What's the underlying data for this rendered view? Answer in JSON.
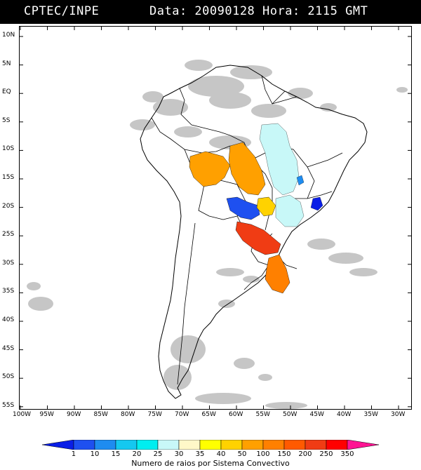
{
  "header": {
    "agency": "CPTEC/INPE",
    "datetime": "Data: 20090128 Hora: 2115 GMT"
  },
  "map": {
    "lat_labels": [
      "10N",
      "5N",
      "EQ",
      "5S",
      "10S",
      "15S",
      "20S",
      "25S",
      "30S",
      "35S",
      "40S",
      "45S",
      "50S",
      "55S"
    ],
    "lon_labels": [
      "100W",
      "95W",
      "90W",
      "85W",
      "80W",
      "75W",
      "70W",
      "65W",
      "60W",
      "55W",
      "50W",
      "45W",
      "40W",
      "35W",
      "30W"
    ],
    "colors": {
      "coast": "#000000",
      "clouds": "#c0c0c0",
      "background": "#ffffff"
    }
  },
  "legend": {
    "values": [
      "1",
      "10",
      "15",
      "20",
      "25",
      "30",
      "35",
      "40",
      "50",
      "100",
      "150",
      "200",
      "250",
      "350"
    ],
    "colors": [
      "#0a1ee6",
      "#1e50f0",
      "#1e8cf0",
      "#14c8f0",
      "#00eef0",
      "#c8f8f8",
      "#fff8c8",
      "#ffff00",
      "#ffd200",
      "#ffa000",
      "#ff8000",
      "#ff5a00",
      "#f03c14",
      "#ff0000",
      "#ff1493"
    ],
    "title": "Numero de raios por Sistema Convectivo"
  }
}
